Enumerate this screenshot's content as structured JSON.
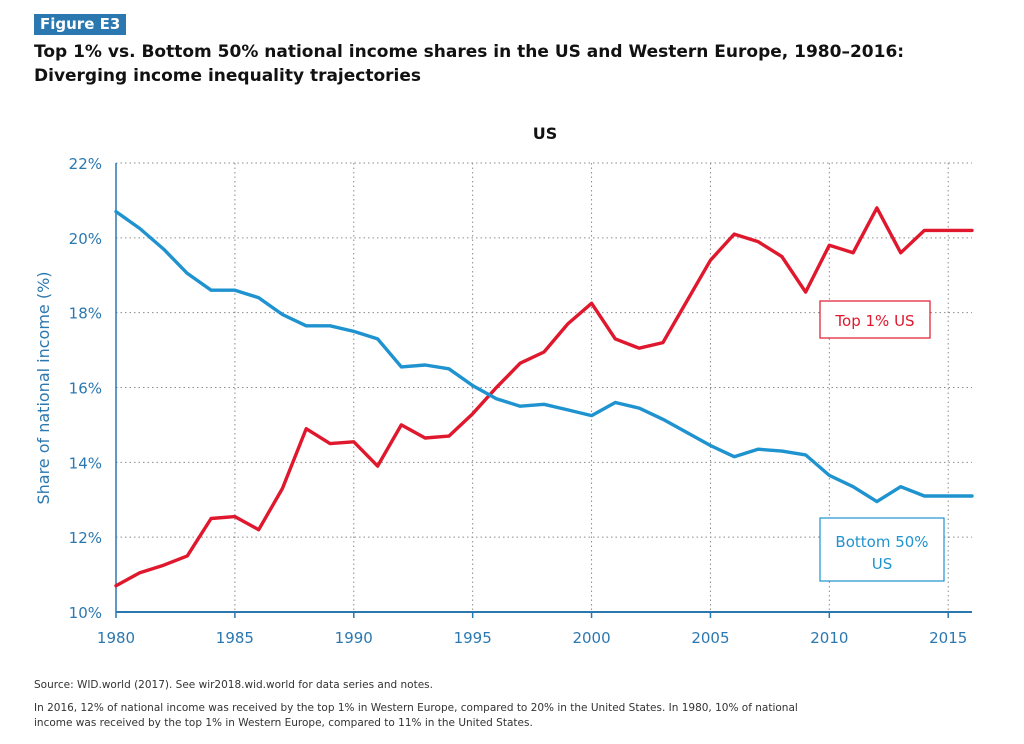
{
  "figure": {
    "badge": "Figure E3",
    "title_line1": "Top 1% vs. Bottom 50% national income shares in the US and Western Europe, 1980–2016:",
    "title_line2": "Diverging income inequality trajectories"
  },
  "footer": {
    "source": "Source:  WID.world (2017). See wir2018.wid.world for data series and notes.",
    "note_line1": "In 2016, 12% of national income was received by the top 1% in Western Europe, compared to 20% in the United States. In 1980, 10% of national",
    "note_line2": "income was received by the top 1% in Western Europe, compared to 11% in the United States."
  },
  "chart_data": {
    "type": "line",
    "title": "US",
    "ylabel": "Share of national income (%)",
    "xlabel": "",
    "xlim": [
      1980,
      2016
    ],
    "ylim": [
      10,
      22
    ],
    "y_ticks": [
      "10%",
      "12%",
      "14%",
      "16%",
      "18%",
      "20%",
      "22%"
    ],
    "y_tick_values": [
      10,
      12,
      14,
      16,
      18,
      20,
      22
    ],
    "x_ticks": [
      "1980",
      "1985",
      "1990",
      "1995",
      "2000",
      "2005",
      "2010",
      "2015"
    ],
    "x_tick_values": [
      1980,
      1985,
      1990,
      1995,
      2000,
      2005,
      2010,
      2015
    ],
    "grid": true,
    "x": [
      1980,
      1981,
      1982,
      1983,
      1984,
      1985,
      1986,
      1987,
      1988,
      1989,
      1990,
      1991,
      1992,
      1993,
      1994,
      1995,
      1996,
      1997,
      1998,
      1999,
      2000,
      2001,
      2002,
      2003,
      2004,
      2005,
      2006,
      2007,
      2008,
      2009,
      2010,
      2011,
      2012,
      2013,
      2014,
      2015,
      2016
    ],
    "series": [
      {
        "name": "Top 1% US",
        "color": "#e0182d",
        "values": [
          10.7,
          11.05,
          11.25,
          11.5,
          12.5,
          12.55,
          12.2,
          13.3,
          14.9,
          14.5,
          14.55,
          13.9,
          15.0,
          14.65,
          14.7,
          15.3,
          16.0,
          16.65,
          16.95,
          17.7,
          18.25,
          17.3,
          17.05,
          17.2,
          18.3,
          19.4,
          20.1,
          19.9,
          19.5,
          18.55,
          19.8,
          19.6,
          20.8,
          19.6,
          20.2,
          20.2,
          20.2
        ]
      },
      {
        "name": "Bottom 50% US",
        "name_line1": "Bottom 50%",
        "name_line2": "US",
        "color": "#1f93cf",
        "values": [
          20.7,
          20.25,
          19.7,
          19.05,
          18.6,
          18.6,
          18.4,
          17.95,
          17.65,
          17.65,
          17.5,
          17.3,
          16.55,
          16.6,
          16.5,
          16.05,
          15.7,
          15.5,
          15.55,
          15.4,
          15.25,
          15.6,
          15.45,
          15.15,
          14.8,
          14.45,
          14.15,
          14.35,
          14.3,
          14.2,
          13.65,
          13.35,
          12.95,
          13.35,
          13.1,
          13.1,
          13.1
        ]
      }
    ],
    "axis_color": "#2b78b0",
    "label_color": "#2b78b0"
  }
}
